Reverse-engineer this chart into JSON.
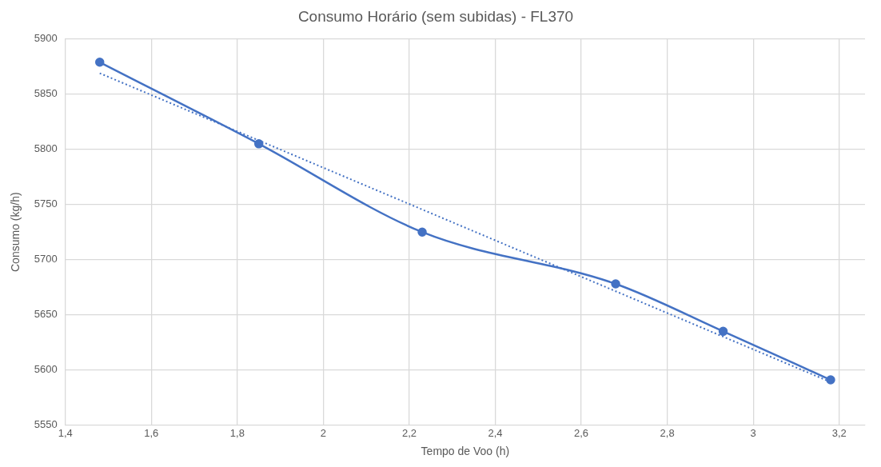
{
  "chart_data": {
    "type": "line",
    "title": "Consumo Horário (sem subidas) - FL370",
    "xlabel": "Tempo de Voo (h)",
    "ylabel": "Consumo (kg/h)",
    "x": [
      1.48,
      1.85,
      2.23,
      2.68,
      2.93,
      3.18
    ],
    "series": [
      {
        "color": "#4472c4",
        "values": [
          5879,
          5805,
          5725,
          5678,
          5635,
          5591
        ],
        "marker": "circle",
        "line_style": "solid"
      },
      {
        "type": "line",
        "color": "#4472c4",
        "x": [
          1.48,
          3.18
        ],
        "values": [
          5869,
          5589
        ],
        "marker": "none",
        "line_style": "dotted"
      }
    ],
    "xlim": [
      1.4,
      3.26
    ],
    "xticks": [
      {
        "value": 1.4,
        "label": "1,4"
      },
      {
        "value": 1.6,
        "label": "1,6"
      },
      {
        "value": 1.8,
        "label": "1,8"
      },
      2,
      {
        "value": 2.2,
        "label": "2,2"
      },
      {
        "value": 2.4,
        "label": "2,4"
      },
      {
        "value": 2.6,
        "label": "2,6"
      },
      {
        "value": 2.8,
        "label": "2,8"
      },
      3,
      {
        "value": 3.2,
        "label": "3,2"
      }
    ],
    "ylim": [
      5550,
      5900
    ],
    "yticks": [
      5550,
      5600,
      5650,
      5700,
      5750,
      5800,
      5850,
      5900
    ],
    "grid": true,
    "legend": false
  }
}
